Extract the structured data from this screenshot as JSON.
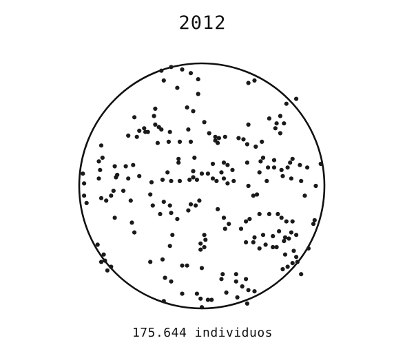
{
  "chart_data": {
    "type": "scatter",
    "title": "2012",
    "caption": "175.644 individuos",
    "xlim": [
      -1,
      1
    ],
    "ylim": [
      -1,
      1
    ],
    "grid": false,
    "legend": "none",
    "colors": {
      "point": "#1a1a1a",
      "circle": "#111111",
      "background": "#ffffff",
      "text": "#111111"
    },
    "points": [
      [
        -0.33,
        0.94
      ],
      [
        -0.25,
        0.97
      ],
      [
        -0.16,
        0.95
      ],
      [
        -0.09,
        0.92
      ],
      [
        -0.31,
        0.86
      ],
      [
        -0.2,
        0.8
      ],
      [
        -0.03,
        0.87
      ],
      [
        -0.03,
        0.75
      ],
      [
        0.38,
        0.84
      ],
      [
        0.43,
        0.86
      ],
      [
        0.69,
        0.67
      ],
      [
        0.77,
        0.71
      ],
      [
        -0.38,
        0.63
      ],
      [
        -0.12,
        0.64
      ],
      [
        -0.07,
        0.61
      ],
      [
        -0.55,
        0.56
      ],
      [
        -0.39,
        0.57
      ],
      [
        -0.38,
        0.5
      ],
      [
        -0.35,
        0.48
      ],
      [
        -0.51,
        0.45
      ],
      [
        -0.46,
        0.44
      ],
      [
        -0.47,
        0.47
      ],
      [
        -0.6,
        0.41
      ],
      [
        -0.53,
        0.4
      ],
      [
        -0.44,
        0.44
      ],
      [
        -0.33,
        0.46
      ],
      [
        -0.26,
        0.44
      ],
      [
        -0.11,
        0.46
      ],
      [
        0.02,
        0.52
      ],
      [
        0.06,
        0.43
      ],
      [
        0.11,
        0.4
      ],
      [
        0.19,
        0.4
      ],
      [
        0.14,
        0.39
      ],
      [
        0.3,
        0.39
      ],
      [
        0.34,
        0.38
      ],
      [
        0.38,
        0.5
      ],
      [
        0.55,
        0.55
      ],
      [
        0.61,
        0.51
      ],
      [
        0.64,
        0.57
      ],
      [
        0.64,
        0.43
      ],
      [
        0.67,
        0.51
      ],
      [
        0.6,
        0.47
      ],
      [
        0.49,
        0.36
      ],
      [
        -0.36,
        0.35
      ],
      [
        -0.27,
        0.36
      ],
      [
        -0.18,
        0.36
      ],
      [
        -0.09,
        0.36
      ],
      [
        0.11,
        0.37
      ],
      [
        0.13,
        0.35
      ],
      [
        -0.82,
        0.33
      ],
      [
        -0.81,
        0.23
      ],
      [
        -0.84,
        0.2
      ],
      [
        -0.62,
        0.16
      ],
      [
        -0.56,
        0.17
      ],
      [
        -0.28,
        0.11
      ],
      [
        -0.19,
        0.19
      ],
      [
        -0.19,
        0.22
      ],
      [
        -0.06,
        0.23
      ],
      [
        0.09,
        0.18
      ],
      [
        0.18,
        0.19
      ],
      [
        0.21,
        0.17
      ],
      [
        0.16,
        0.11
      ],
      [
        0.25,
        0.13
      ],
      [
        0.37,
        0.34
      ],
      [
        0.44,
        0.32
      ],
      [
        0.37,
        0.19
      ],
      [
        0.47,
        0.11
      ],
      [
        0.48,
        0.2
      ],
      [
        0.54,
        0.15
      ],
      [
        0.5,
        0.23
      ],
      [
        0.59,
        0.15
      ],
      [
        0.59,
        0.21
      ],
      [
        0.65,
        0.13
      ],
      [
        0.7,
        0.15
      ],
      [
        0.72,
        0.19
      ],
      [
        0.74,
        0.22
      ],
      [
        0.8,
        0.17
      ],
      [
        0.86,
        0.15
      ],
      [
        0.97,
        0.18
      ],
      [
        0.81,
        0.04
      ],
      [
        -0.83,
        0.13
      ],
      [
        -0.84,
        0.06
      ],
      [
        -0.71,
        0.16
      ],
      [
        -0.69,
        0.09
      ],
      [
        -0.7,
        0.07
      ],
      [
        -0.6,
        0.06
      ],
      [
        -0.51,
        0.08
      ],
      [
        -0.41,
        0.03
      ],
      [
        -0.32,
        0.05
      ],
      [
        -0.25,
        0.04
      ],
      [
        -0.18,
        0.04
      ],
      [
        -0.1,
        0.05
      ],
      [
        -0.07,
        0.07
      ],
      [
        -0.04,
        0.05
      ],
      [
        -0.07,
        0.12
      ],
      [
        0.0,
        0.1
      ],
      [
        0.05,
        0.1
      ],
      [
        0.09,
        0.06
      ],
      [
        0.12,
        0.04
      ],
      [
        0.18,
        0.06
      ],
      [
        0.21,
        0.02
      ],
      [
        0.26,
        0.04
      ],
      [
        0.38,
        0.0
      ],
      [
        0.42,
        -0.08
      ],
      [
        0.45,
        -0.07
      ],
      [
        0.53,
        0.04
      ],
      [
        0.66,
        0.08
      ],
      [
        0.73,
        0.06
      ],
      [
        0.93,
        0.0
      ],
      [
        0.84,
        -0.08
      ],
      [
        -0.97,
        0.1
      ],
      [
        -0.96,
        0.02
      ],
      [
        -0.96,
        -0.08
      ],
      [
        -0.94,
        -0.14
      ],
      [
        -0.82,
        -0.1
      ],
      [
        -0.78,
        -0.12
      ],
      [
        -0.74,
        -0.08
      ],
      [
        -0.72,
        -0.04
      ],
      [
        -0.64,
        -0.04
      ],
      [
        -0.58,
        -0.12
      ],
      [
        -0.42,
        -0.07
      ],
      [
        -0.4,
        -0.16
      ],
      [
        -0.34,
        -0.23
      ],
      [
        -0.31,
        -0.13
      ],
      [
        -0.26,
        -0.16
      ],
      [
        -0.25,
        -0.22
      ],
      [
        -0.11,
        -0.2
      ],
      [
        -0.09,
        -0.15
      ],
      [
        -0.05,
        -0.16
      ],
      [
        -0.02,
        -0.12
      ],
      [
        -0.71,
        -0.26
      ],
      [
        -0.57,
        -0.3
      ],
      [
        -0.55,
        -0.38
      ],
      [
        -0.2,
        -0.27
      ],
      [
        0.13,
        -0.19
      ],
      [
        0.18,
        -0.26
      ],
      [
        0.19,
        -0.35
      ],
      [
        0.22,
        -0.31
      ],
      [
        0.36,
        -0.29
      ],
      [
        0.39,
        -0.27
      ],
      [
        0.47,
        -0.23
      ],
      [
        0.55,
        -0.23
      ],
      [
        0.62,
        -0.23
      ],
      [
        0.65,
        -0.26
      ],
      [
        0.69,
        -0.29
      ],
      [
        0.74,
        -0.29
      ],
      [
        0.73,
        -0.38
      ],
      [
        0.77,
        -0.4
      ],
      [
        0.91,
        -0.31
      ],
      [
        0.92,
        -0.28
      ],
      [
        -0.24,
        -0.4
      ],
      [
        -0.26,
        -0.49
      ],
      [
        -0.01,
        -0.47
      ],
      [
        -0.01,
        -0.52
      ],
      [
        0.02,
        -0.4
      ],
      [
        0.02,
        -0.5
      ],
      [
        0.03,
        -0.44
      ],
      [
        0.32,
        -0.35
      ],
      [
        0.36,
        -0.46
      ],
      [
        0.42,
        -0.46
      ],
      [
        0.43,
        -0.42
      ],
      [
        0.47,
        -0.51
      ],
      [
        0.5,
        -0.4
      ],
      [
        0.52,
        -0.48
      ],
      [
        0.58,
        -0.5
      ],
      [
        0.61,
        -0.5
      ],
      [
        0.58,
        -0.41
      ],
      [
        0.63,
        -0.37
      ],
      [
        0.68,
        -0.42
      ],
      [
        0.71,
        -0.43
      ],
      [
        0.67,
        -0.45
      ],
      [
        0.68,
        -0.56
      ],
      [
        0.75,
        -0.53
      ],
      [
        0.77,
        -0.58
      ],
      [
        0.78,
        -0.62
      ],
      [
        0.74,
        -0.63
      ],
      [
        0.81,
        -0.72
      ],
      [
        0.7,
        -0.66
      ],
      [
        0.66,
        -0.68
      ],
      [
        0.87,
        -0.51
      ],
      [
        -0.85,
        -0.48
      ],
      [
        -0.8,
        -0.56
      ],
      [
        -0.82,
        -0.62
      ],
      [
        -0.79,
        -0.61
      ],
      [
        -0.74,
        -0.66
      ],
      [
        -0.77,
        -0.69
      ],
      [
        -0.42,
        -0.62
      ],
      [
        -0.32,
        -0.6
      ],
      [
        -0.3,
        -0.75
      ],
      [
        -0.25,
        -0.78
      ],
      [
        -0.16,
        -0.65
      ],
      [
        -0.12,
        -0.65
      ],
      [
        0.0,
        -0.67
      ],
      [
        0.16,
        -0.76
      ],
      [
        0.17,
        -0.72
      ],
      [
        0.28,
        -0.72
      ],
      [
        0.28,
        -0.78
      ],
      [
        0.33,
        -0.82
      ],
      [
        0.36,
        -0.76
      ],
      [
        0.38,
        -0.85
      ],
      [
        0.43,
        -0.86
      ],
      [
        -0.16,
        -0.88
      ],
      [
        -0.31,
        -0.94
      ],
      [
        -0.04,
        -0.88
      ],
      [
        -0.01,
        -0.92
      ],
      [
        0.05,
        -0.93
      ],
      [
        0.08,
        -0.93
      ],
      [
        0.2,
        -0.87
      ],
      [
        0.29,
        -0.91
      ],
      [
        0.0,
        -0.99
      ],
      [
        0.37,
        -0.96
      ]
    ]
  }
}
